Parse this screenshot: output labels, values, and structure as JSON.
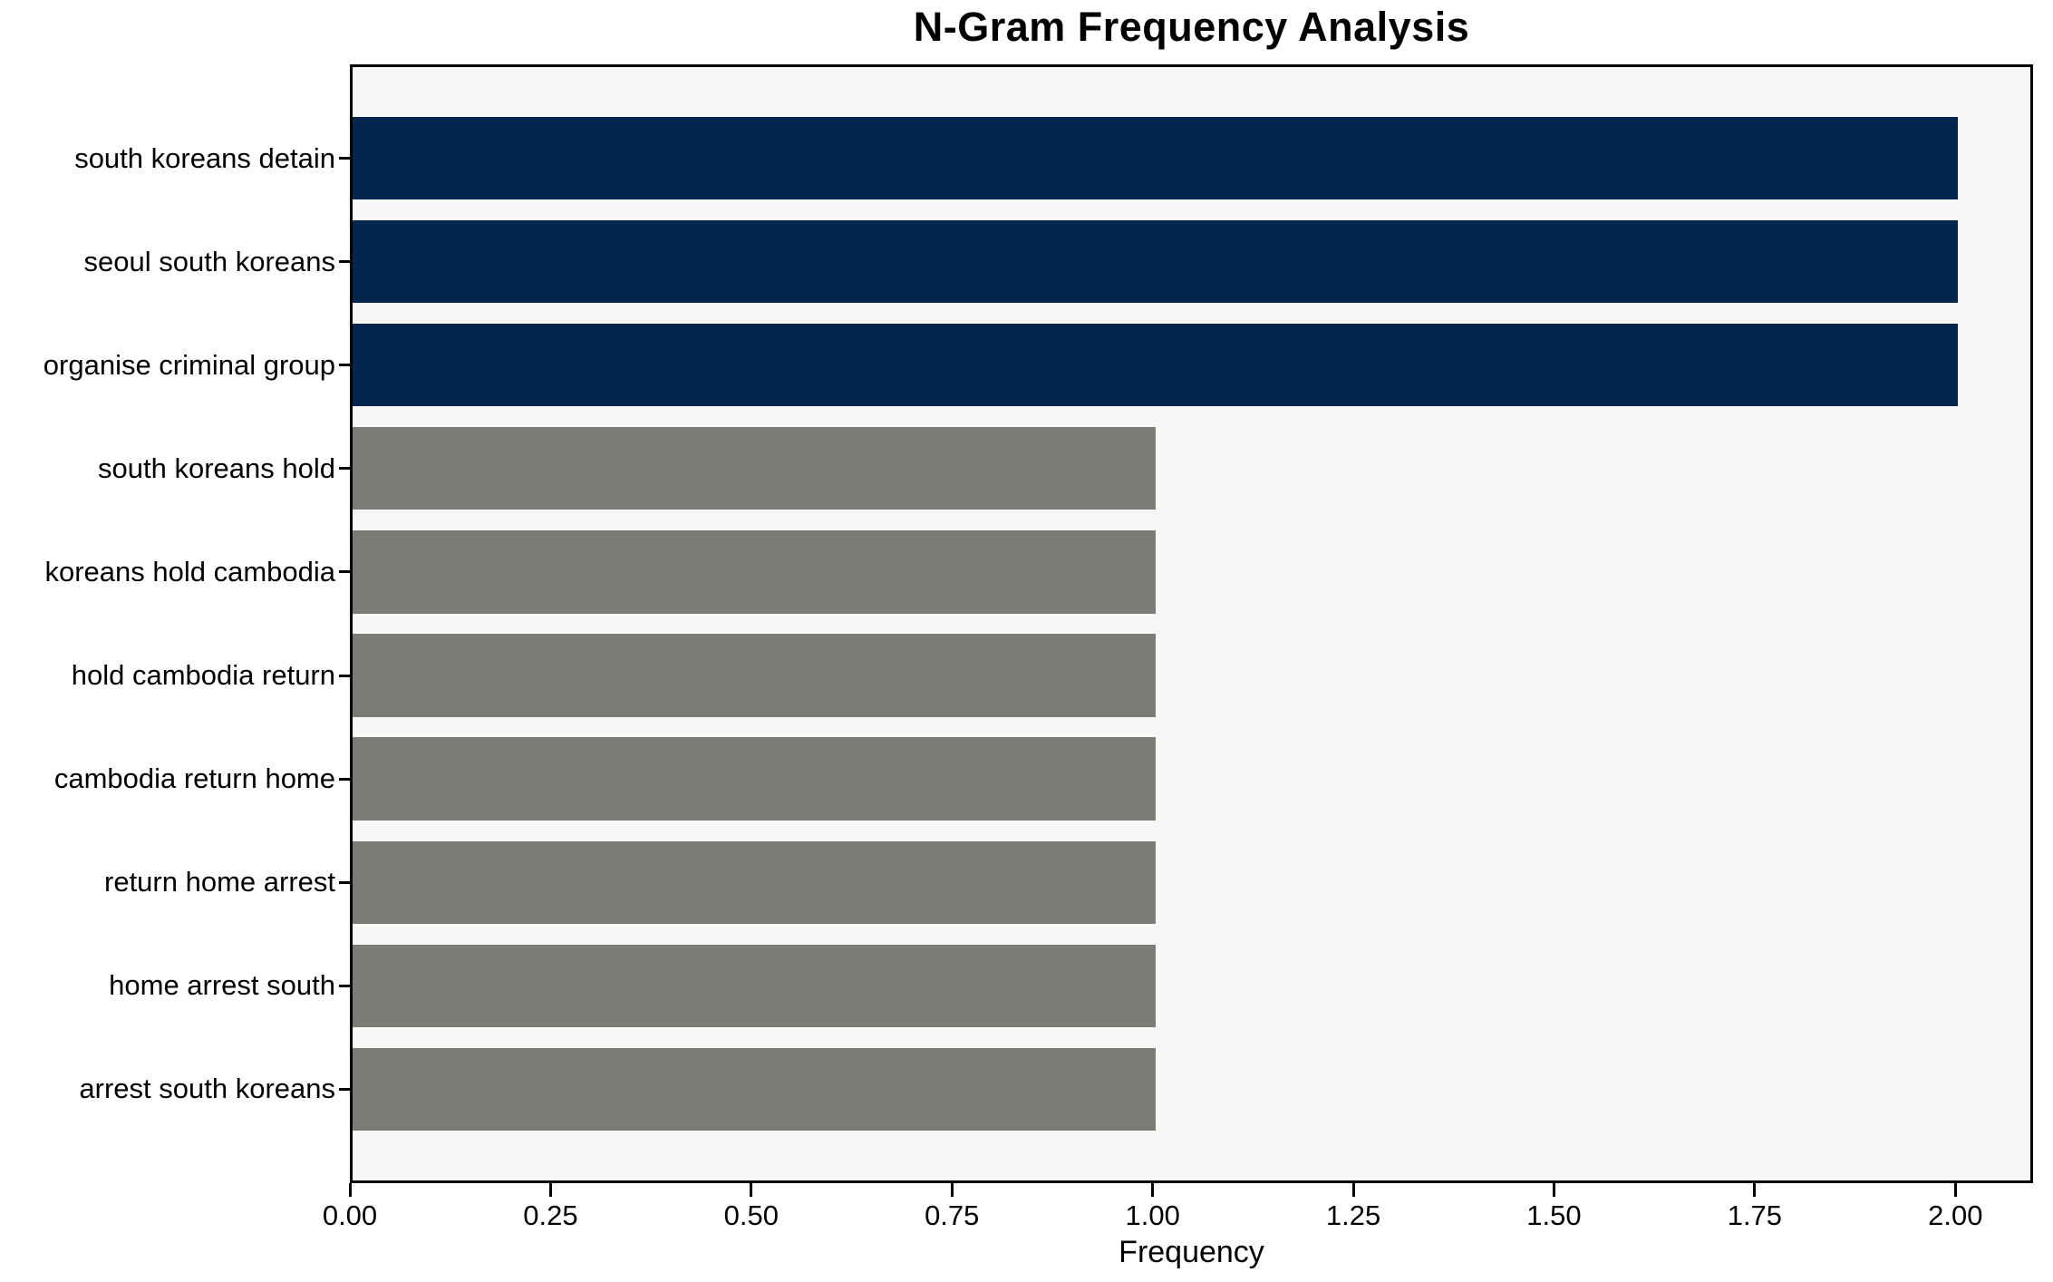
{
  "chart_data": {
    "type": "bar",
    "orientation": "horizontal",
    "title": "N-Gram Frequency Analysis",
    "xlabel": "Frequency",
    "categories": [
      "south koreans detain",
      "seoul south koreans",
      "organise criminal group",
      "south koreans hold",
      "koreans hold cambodia",
      "hold cambodia return",
      "cambodia return home",
      "return home arrest",
      "home arrest south",
      "arrest south koreans"
    ],
    "values": [
      2,
      2,
      2,
      1,
      1,
      1,
      1,
      1,
      1,
      1
    ],
    "bar_colors": [
      "#04264E",
      "#04264E",
      "#04264E",
      "#7B7B78",
      "#7B7B78",
      "#7B7B78",
      "#7B7B78",
      "#7B7B78",
      "#7B7B78",
      "#7B7B78"
    ],
    "xlim": [
      0,
      2.09
    ],
    "xticks": [
      {
        "value": 0.0,
        "label": "0.00"
      },
      {
        "value": 0.25,
        "label": "0.25"
      },
      {
        "value": 0.5,
        "label": "0.50"
      },
      {
        "value": 0.75,
        "label": "0.75"
      },
      {
        "value": 1.0,
        "label": "1.00"
      },
      {
        "value": 1.25,
        "label": "1.25"
      },
      {
        "value": 1.5,
        "label": "1.50"
      },
      {
        "value": 1.75,
        "label": "1.75"
      },
      {
        "value": 2.0,
        "label": "2.00"
      }
    ],
    "grid": false,
    "colors": {
      "highlight_bar": "#04264E",
      "default_bar": "#7B7B78",
      "plot_background": "#F7F7F5",
      "figure_background": "#FFFFFF",
      "spine": "#000000",
      "text": "#000000"
    }
  }
}
